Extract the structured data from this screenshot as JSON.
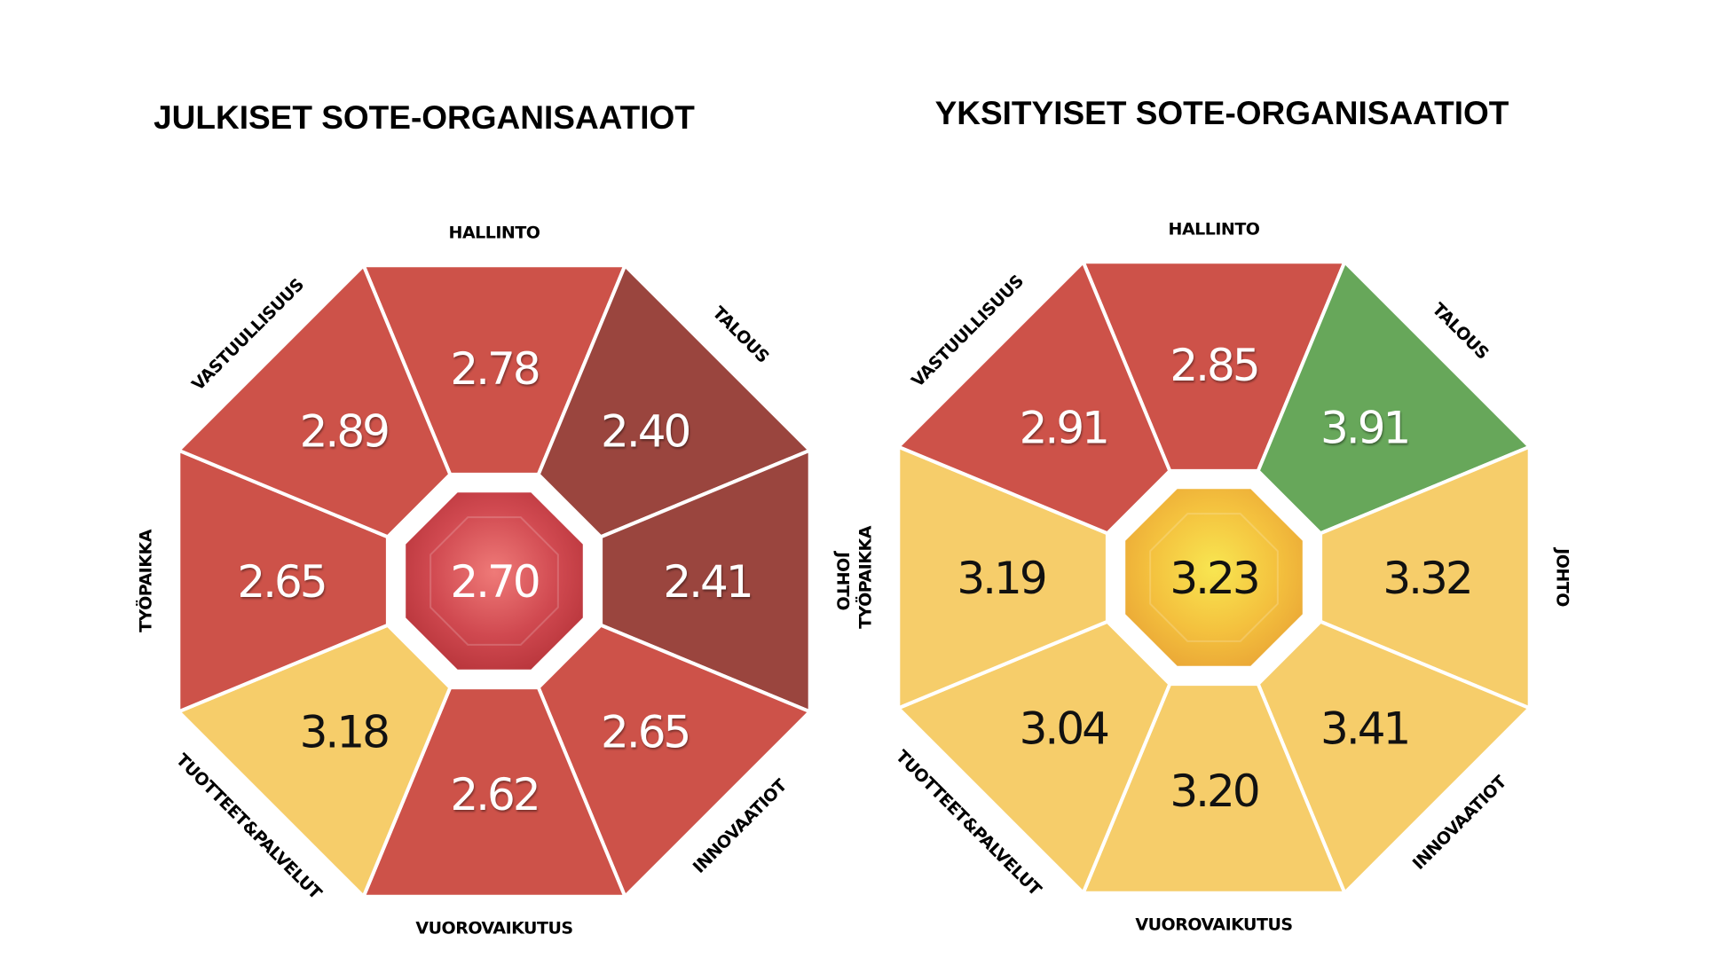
{
  "chart_data": [
    {
      "type": "octagon-scorecard",
      "title": "JULKISET SOTE-ORGANISAATIOT",
      "center": {
        "value": "2.70",
        "color": "#c8464a"
      },
      "segments": [
        {
          "label": "HALLINTO",
          "value": "2.78",
          "color": "#cd5249"
        },
        {
          "label": "TALOUS",
          "value": "2.40",
          "color": "#9a453e"
        },
        {
          "label": "JOHTO",
          "value": "2.41",
          "color": "#9a453e"
        },
        {
          "label": "INNOVAATIOT",
          "value": "2.65",
          "color": "#cd5249"
        },
        {
          "label": "VUOROVAIKUTUS",
          "value": "2.62",
          "color": "#cd5249"
        },
        {
          "label": "TUOTTEET&PALVELUT",
          "value": "3.18",
          "color": "#f6cd6a"
        },
        {
          "label": "TYÖPAIKKA",
          "value": "2.65",
          "color": "#cd5249"
        },
        {
          "label": "VASTUULLISUUS",
          "value": "2.89",
          "color": "#cd5249"
        }
      ]
    },
    {
      "type": "octagon-scorecard",
      "title": "YKSITYISET SOTE-ORGANISAATIOT",
      "center": {
        "value": "3.23",
        "color": "#f2b83c"
      },
      "segments": [
        {
          "label": "HALLINTO",
          "value": "2.85",
          "color": "#cd5249"
        },
        {
          "label": "TALOUS",
          "value": "3.91",
          "color": "#67a75a"
        },
        {
          "label": "JOHTO",
          "value": "3.32",
          "color": "#f6cd6a"
        },
        {
          "label": "INNOVAATIOT",
          "value": "3.41",
          "color": "#f6cd6a"
        },
        {
          "label": "VUOROVAIKUTUS",
          "value": "3.20",
          "color": "#f6cd6a"
        },
        {
          "label": "TUOTTEET&PALVELUT",
          "value": "3.04",
          "color": "#f6cd6a"
        },
        {
          "label": "TYÖPAIKKA",
          "value": "3.19",
          "color": "#f6cd6a"
        },
        {
          "label": "VASTUULLISUUS",
          "value": "2.91",
          "color": "#cd5249"
        }
      ]
    }
  ]
}
